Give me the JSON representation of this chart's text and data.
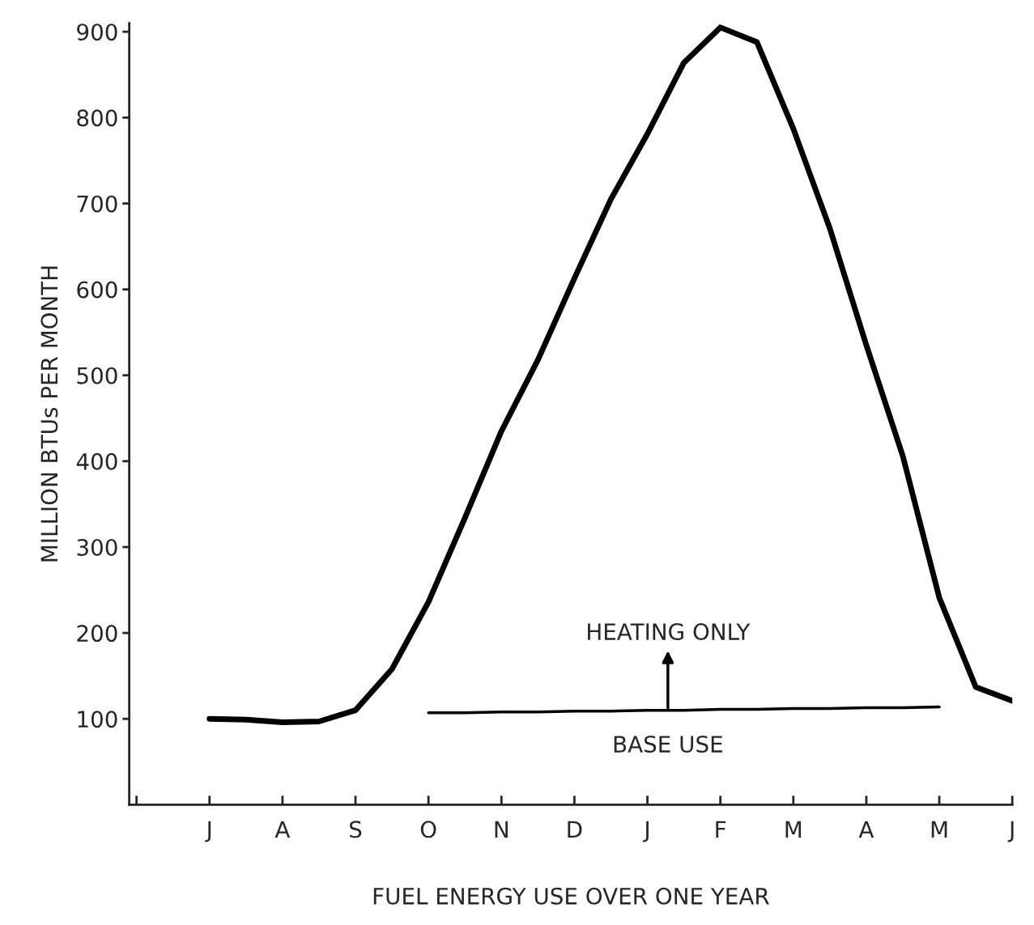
{
  "chart_data": {
    "type": "line",
    "xlabel": "FUEL ENERGY USE OVER ONE YEAR",
    "ylabel": "MILLION BTUs PER MONTH",
    "categories": [
      null,
      null,
      "J",
      null,
      "A",
      null,
      "S",
      null,
      "O",
      null,
      "N",
      null,
      "D",
      null,
      "J",
      null,
      "F",
      null,
      "M",
      null,
      "A",
      null,
      "M",
      null,
      "J"
    ],
    "ylim": [
      0,
      910
    ],
    "yticks": [
      100,
      200,
      300,
      400,
      500,
      600,
      700,
      800,
      900
    ],
    "series": [
      {
        "color": "#000000",
        "values": [
          null,
          null,
          100,
          99,
          96,
          97,
          110,
          158,
          236,
          334,
          435,
          518,
          613,
          705,
          781,
          864,
          905,
          888,
          787,
          671,
          535,
          406,
          241,
          137,
          121
        ]
      },
      {
        "color": "#000000",
        "values": [
          null,
          null,
          null,
          null,
          null,
          null,
          null,
          null,
          107,
          107,
          108,
          108,
          109,
          109,
          110,
          110,
          111,
          111,
          112,
          112,
          113,
          113,
          114,
          null,
          null
        ]
      }
    ],
    "annotations": [
      {
        "text": "HEATING ONLY",
        "y": 110
      },
      "BASE USE"
    ],
    "grid": false,
    "legend": false
  }
}
